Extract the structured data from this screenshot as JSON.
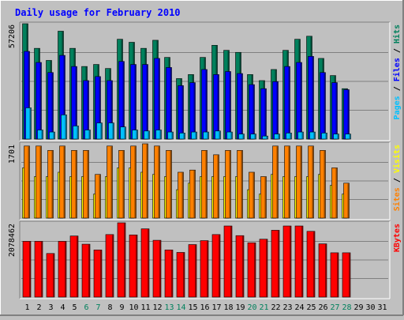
{
  "title": "Daily usage for February 2010",
  "colors": {
    "background": "#c0c0c0",
    "panel": "#c0c0c0",
    "title": "#0000ff",
    "hits": "#00805c",
    "files": "#0000ff",
    "pages": "#00c0ff",
    "visits": "#ffff00",
    "sites": "#ff8000",
    "kbytes": "#ff0000",
    "weekend_day": "#00805c",
    "weekday": "#000000"
  },
  "chart_data": [
    {
      "type": "bar",
      "panel": "hits-files-pages",
      "ymax_label": "57206",
      "ylim": [
        0,
        57206
      ],
      "legend": [
        "Pages",
        "Files",
        "Hits"
      ],
      "series": [
        {
          "name": "Hits",
          "values": [
            57206,
            45000,
            39000,
            53500,
            45000,
            36000,
            37000,
            35000,
            49500,
            48000,
            45000,
            49000,
            40500,
            30000,
            32000,
            40500,
            46500,
            44000,
            43000,
            32000,
            29000,
            34500,
            44000,
            49500,
            51000,
            40000,
            31500,
            25000,
            0,
            0,
            0
          ]
        },
        {
          "name": "Files",
          "values": [
            43500,
            38000,
            33000,
            41500,
            36000,
            29000,
            31000,
            29000,
            38500,
            37000,
            37000,
            40000,
            35500,
            26500,
            28000,
            34500,
            32000,
            33500,
            32500,
            27000,
            25000,
            28500,
            36000,
            38000,
            41000,
            33000,
            28000,
            24500,
            0,
            0,
            0
          ]
        },
        {
          "name": "Pages",
          "values": [
            15500,
            4500,
            3500,
            12000,
            6500,
            4500,
            8000,
            8000,
            6000,
            4500,
            4000,
            4500,
            3500,
            3000,
            3500,
            3500,
            4000,
            3500,
            2500,
            2500,
            1500,
            2500,
            3000,
            3500,
            3500,
            3000,
            2500,
            2500,
            0,
            0,
            0
          ]
        }
      ]
    },
    {
      "type": "bar",
      "panel": "visits-sites",
      "ymax_label": "1701",
      "ylim": [
        0,
        1701
      ],
      "legend": [
        "Sites",
        "Visits"
      ],
      "series": [
        {
          "name": "Visits",
          "values": [
            1150,
            950,
            950,
            1050,
            950,
            950,
            550,
            950,
            1150,
            1150,
            1050,
            1000,
            950,
            650,
            800,
            950,
            950,
            950,
            950,
            650,
            550,
            1000,
            950,
            950,
            950,
            1000,
            750,
            550,
            0,
            0,
            0
          ]
        },
        {
          "name": "Sites",
          "values": [
            1650,
            1650,
            1550,
            1650,
            1550,
            1550,
            1000,
            1650,
            1550,
            1650,
            1701,
            1650,
            1550,
            1050,
            1100,
            1550,
            1450,
            1550,
            1550,
            1050,
            950,
            1650,
            1650,
            1650,
            1650,
            1550,
            1150,
            800,
            0,
            0,
            0
          ]
        }
      ]
    },
    {
      "type": "bar",
      "panel": "kbytes",
      "ymax_label": "2078462",
      "ylim": [
        0,
        2078462
      ],
      "legend": [
        "KBytes"
      ],
      "series": [
        {
          "name": "KBytes",
          "values": [
            1560000,
            1560000,
            1220000,
            1560000,
            1710000,
            1480000,
            1320000,
            1750000,
            2078462,
            1740000,
            1910000,
            1590000,
            1320000,
            1250000,
            1470000,
            1580000,
            1750000,
            1990000,
            1720000,
            1520000,
            1620000,
            1870000,
            1990000,
            1990000,
            1840000,
            1490000,
            1240000,
            1240000,
            0,
            0,
            0
          ]
        }
      ]
    }
  ],
  "days": [
    "1",
    "2",
    "3",
    "4",
    "5",
    "6",
    "7",
    "8",
    "9",
    "10",
    "11",
    "12",
    "13",
    "14",
    "15",
    "16",
    "17",
    "18",
    "19",
    "20",
    "21",
    "22",
    "23",
    "24",
    "25",
    "26",
    "27",
    "28",
    "29",
    "30",
    "31"
  ],
  "weekend_days": [
    "6",
    "7",
    "13",
    "14",
    "20",
    "21",
    "27",
    "28"
  ]
}
